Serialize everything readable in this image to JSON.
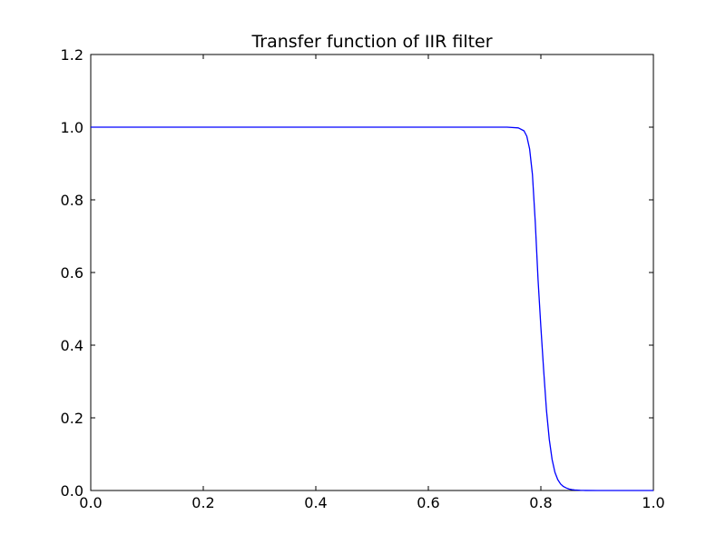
{
  "chart_data": {
    "type": "line",
    "title": "Transfer function of IIR filter",
    "xlabel": "",
    "ylabel": "",
    "xlim": [
      0.0,
      1.0
    ],
    "ylim": [
      0.0,
      1.2
    ],
    "x_ticks": [
      "0.0",
      "0.2",
      "0.4",
      "0.6",
      "0.8",
      "1.0"
    ],
    "y_ticks": [
      "0.0",
      "0.2",
      "0.4",
      "0.6",
      "0.8",
      "1.0",
      "1.2"
    ],
    "grid": false,
    "legend": "none",
    "series": [
      {
        "color": "#0000ff",
        "x": [
          0.0,
          0.1,
          0.2,
          0.3,
          0.4,
          0.5,
          0.6,
          0.7,
          0.74,
          0.76,
          0.77,
          0.775,
          0.78,
          0.785,
          0.79,
          0.795,
          0.8,
          0.805,
          0.81,
          0.815,
          0.82,
          0.825,
          0.83,
          0.835,
          0.84,
          0.845,
          0.85,
          0.855,
          0.86,
          0.87,
          0.88,
          0.9,
          0.95,
          1.0
        ],
        "y": [
          1.0,
          1.0,
          1.0,
          1.0,
          1.0,
          1.0,
          1.0,
          1.0,
          1.0,
          0.998,
          0.99,
          0.975,
          0.94,
          0.87,
          0.74,
          0.58,
          0.45,
          0.33,
          0.22,
          0.14,
          0.085,
          0.05,
          0.03,
          0.018,
          0.011,
          0.007,
          0.004,
          0.0025,
          0.0015,
          0.0006,
          0.0002,
          0.0,
          0.0,
          0.0
        ]
      }
    ]
  }
}
